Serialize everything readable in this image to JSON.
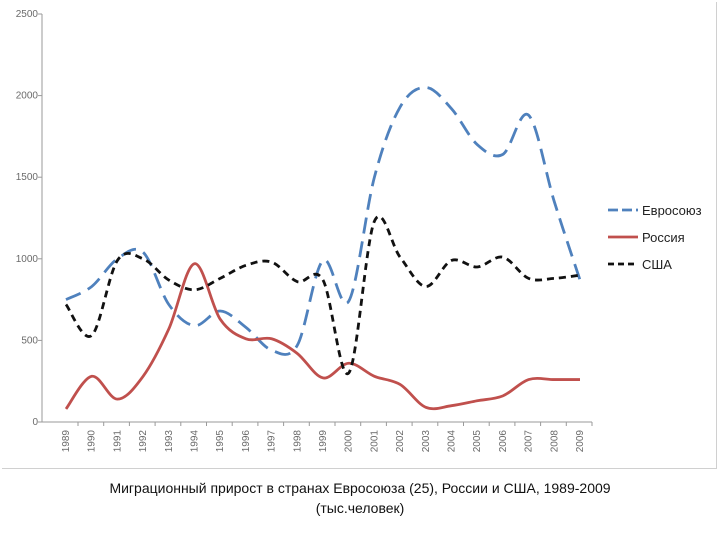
{
  "caption": {
    "line1": "Миграционный прирост в странах Евросоюза (25), России и США, 1989-2009",
    "line2": "(тыс.человек)"
  },
  "chart_data": {
    "type": "line",
    "title": "",
    "xlabel": "",
    "ylabel": "",
    "ylim": [
      0,
      2500
    ],
    "yticks": [
      0,
      500,
      1000,
      1500,
      2000,
      2500
    ],
    "grid": false,
    "legend_position": "right",
    "categories": [
      "1989",
      "1990",
      "1991",
      "1992",
      "1993",
      "1994",
      "1995",
      "1996",
      "1997",
      "1998",
      "1999",
      "2000",
      "2001",
      "2002",
      "2003",
      "2004",
      "2005",
      "2006",
      "2007",
      "2008",
      "2009"
    ],
    "series": [
      {
        "name": "Евросоюз",
        "color": "#4f81bd",
        "dash": "long-dash",
        "values": [
          750,
          830,
          1000,
          1040,
          720,
          590,
          680,
          580,
          440,
          470,
          990,
          740,
          1500,
          1930,
          2050,
          1920,
          1700,
          1640,
          1880,
          1350,
          870
        ]
      },
      {
        "name": "Россия",
        "color": "#c0504d",
        "dash": "solid",
        "values": [
          80,
          280,
          140,
          280,
          570,
          970,
          630,
          510,
          510,
          420,
          270,
          360,
          280,
          230,
          90,
          100,
          130,
          160,
          260,
          260,
          260
        ]
      },
      {
        "name": "США",
        "color": "#111111",
        "dash": "short-dash",
        "values": [
          720,
          530,
          990,
          1000,
          870,
          810,
          880,
          960,
          980,
          860,
          870,
          300,
          1230,
          1010,
          830,
          990,
          950,
          1010,
          880,
          880,
          900
        ]
      }
    ]
  }
}
